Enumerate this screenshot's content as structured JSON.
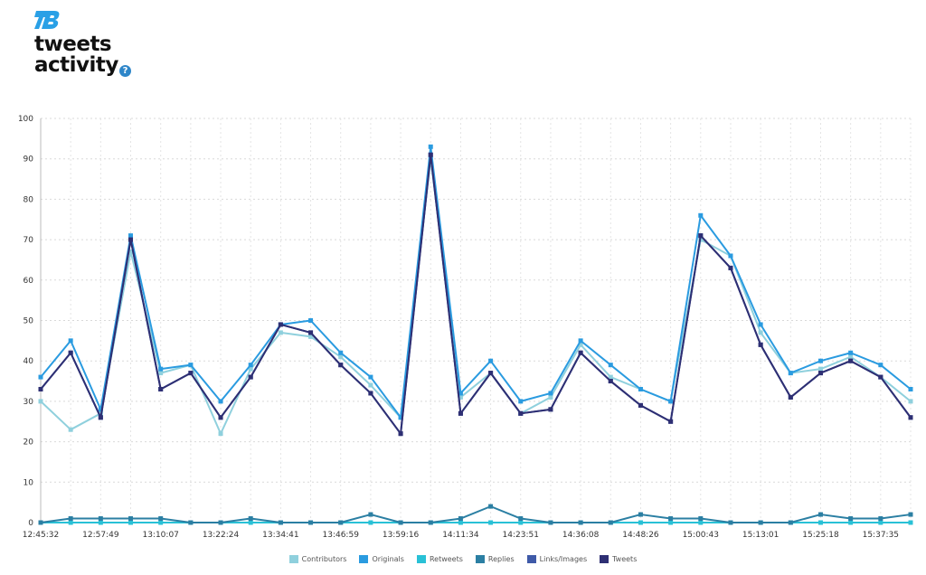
{
  "header": {
    "logo_mark": "TB",
    "title_line1": "tweets",
    "title_line2": "activity",
    "help_icon": "question-circle-icon",
    "help_symbol": "?"
  },
  "chart_data": {
    "type": "line",
    "x": [
      "12:45:32",
      "",
      "12:57:49",
      "",
      "13:10:07",
      "",
      "13:22:24",
      "",
      "13:34:41",
      "",
      "13:46:59",
      "",
      "13:59:16",
      "",
      "14:11:34",
      "",
      "14:23:51",
      "",
      "14:36:08",
      "",
      "14:48:26",
      "",
      "15:00:43",
      "",
      "15:13:01",
      "",
      "15:25:18",
      "",
      "15:37:35",
      ""
    ],
    "ylim": [
      0,
      100
    ],
    "yticks": [
      0,
      10,
      20,
      30,
      40,
      50,
      60,
      70,
      80,
      90,
      100
    ],
    "grid": true,
    "legend_position": "bottom",
    "series": [
      {
        "name": "Contributors",
        "color": "#8fd0dd",
        "values": [
          30,
          23,
          27,
          67,
          37,
          39,
          22,
          38,
          47,
          46,
          41,
          34,
          26,
          90,
          31,
          37,
          27,
          31,
          44,
          36,
          33,
          30,
          70,
          66,
          47,
          37,
          38,
          41,
          36,
          30
        ]
      },
      {
        "name": "Originals",
        "color": "#2a9be0",
        "values": [
          36,
          45,
          28,
          71,
          38,
          39,
          30,
          39,
          49,
          50,
          42,
          36,
          26,
          93,
          32,
          40,
          30,
          32,
          45,
          39,
          33,
          30,
          76,
          66,
          49,
          37,
          40,
          42,
          39,
          33
        ]
      },
      {
        "name": "Retweets",
        "color": "#29c1d6",
        "values": [
          0,
          0,
          0,
          0,
          0,
          0,
          0,
          0,
          0,
          0,
          0,
          0,
          0,
          0,
          0,
          0,
          0,
          0,
          0,
          0,
          0,
          0,
          0,
          0,
          0,
          0,
          0,
          0,
          0,
          0
        ]
      },
      {
        "name": "Replies",
        "color": "#2b7fa3",
        "values": [
          0,
          1,
          1,
          1,
          1,
          0,
          0,
          1,
          0,
          0,
          0,
          2,
          0,
          0,
          1,
          4,
          1,
          0,
          0,
          0,
          2,
          1,
          1,
          0,
          0,
          0,
          2,
          1,
          1,
          2
        ]
      },
      {
        "name": "Links/Images",
        "color": "#3f5aa8",
        "values": [
          33,
          42,
          26,
          70,
          33,
          37,
          26,
          36,
          49,
          47,
          39,
          32,
          22,
          91,
          27,
          37,
          27,
          28,
          42,
          35,
          29,
          25,
          71,
          63,
          44,
          31,
          37,
          40,
          36,
          26
        ]
      },
      {
        "name": "Tweets",
        "color": "#2e2f73",
        "values": [
          33,
          42,
          26,
          70,
          33,
          37,
          26,
          36,
          49,
          47,
          39,
          32,
          22,
          91,
          27,
          37,
          27,
          28,
          42,
          35,
          29,
          25,
          71,
          63,
          44,
          31,
          37,
          40,
          36,
          26
        ]
      }
    ]
  }
}
